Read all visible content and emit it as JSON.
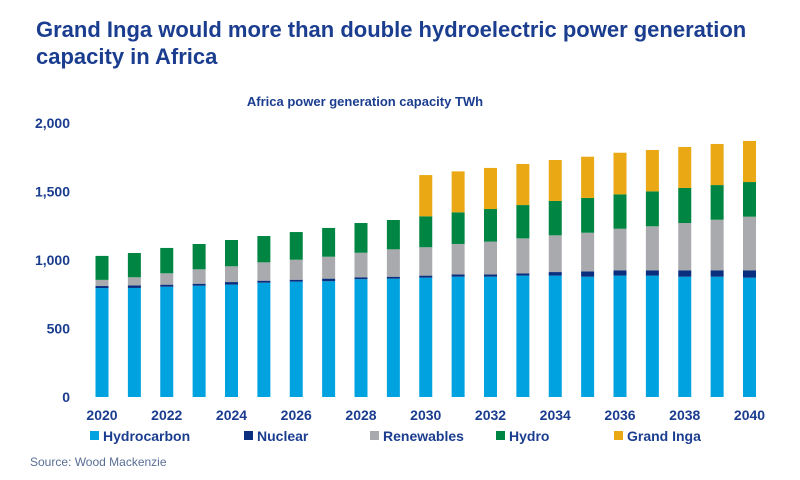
{
  "title": "Grand Inga would more than double hydroelectric power generation capacity in Africa",
  "source": "Source: Wood Mackenzie",
  "chart_data": {
    "type": "bar",
    "stacked": true,
    "title": "Africa power generation capacity TWh",
    "xlabel": "",
    "ylabel": "",
    "ylim": [
      0,
      2000
    ],
    "yticks": [
      "0",
      "500",
      "1,000",
      "1,500",
      "2,000"
    ],
    "ytick_values": [
      0,
      500,
      1000,
      1500,
      2000
    ],
    "grid": false,
    "legend": "bottom",
    "categories": [
      "2020",
      "2021",
      "2022",
      "2023",
      "2024",
      "2025",
      "2026",
      "2027",
      "2028",
      "2029",
      "2030",
      "2031",
      "2032",
      "2033",
      "2034",
      "2035",
      "2036",
      "2037",
      "2038",
      "2039",
      "2040"
    ],
    "xtick_labels": [
      "2020",
      "2022",
      "2024",
      "2026",
      "2028",
      "2030",
      "2032",
      "2034",
      "2036",
      "2038",
      "2040"
    ],
    "series": [
      {
        "name": "Hydrocarbon",
        "color": "#00a3e0",
        "values": [
          795,
          796,
          805,
          812,
          820,
          834,
          842,
          845,
          860,
          864,
          871,
          878,
          878,
          886,
          886,
          878,
          886,
          886,
          878,
          878,
          871
        ]
      },
      {
        "name": "Nuclear",
        "color": "#0a2f7e",
        "values": [
          15,
          19,
          15,
          15,
          19,
          15,
          14,
          19,
          14,
          14,
          15,
          17,
          17,
          17,
          26,
          39,
          39,
          39,
          47,
          47,
          54
        ]
      },
      {
        "name": "Renewables",
        "color": "#a9aaad",
        "values": [
          45,
          59,
          83,
          105,
          115,
          134,
          146,
          160,
          179,
          200,
          207,
          222,
          239,
          255,
          268,
          282,
          303,
          321,
          345,
          369,
          391
        ]
      },
      {
        "name": "Hydro",
        "color": "#008542",
        "values": [
          175,
          177,
          185,
          185,
          192,
          192,
          202,
          210,
          217,
          214,
          226,
          231,
          238,
          243,
          251,
          254,
          251,
          255,
          256,
          253,
          253
        ]
      },
      {
        "name": "Grand Inga",
        "color": "#eaa814",
        "values": [
          0,
          0,
          0,
          0,
          0,
          0,
          0,
          0,
          0,
          0,
          301,
          299,
          300,
          300,
          299,
          301,
          304,
          302,
          299,
          300,
          300
        ]
      }
    ]
  }
}
